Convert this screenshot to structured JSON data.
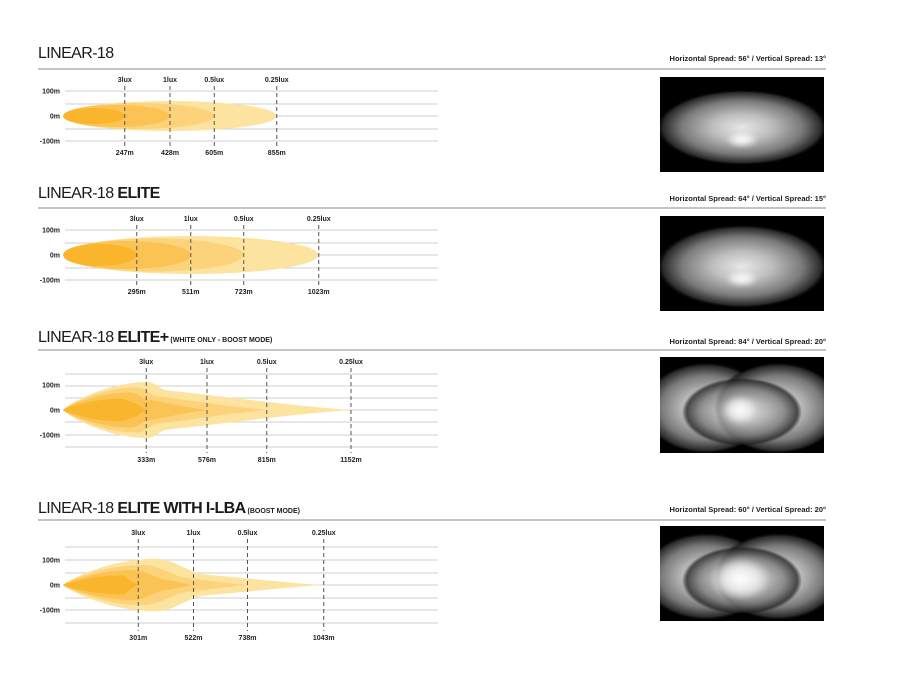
{
  "chart_data": [
    {
      "type": "area",
      "title": "LINEAR-18",
      "title_bold": "",
      "subtitle": "",
      "y_ticks": [
        "100m",
        "0m",
        "-100m"
      ],
      "lux_levels": [
        "3lux",
        "1lux",
        "0.5lux",
        "0.25lux"
      ],
      "distances": [
        "247m",
        "428m",
        "605m",
        "855m"
      ],
      "distance_values_m": [
        247,
        428,
        605,
        855
      ],
      "spread": "Horizontal Spread: 56° / Vertical Spread: 13°",
      "beam_shape": "ellipse"
    },
    {
      "type": "area",
      "title": "LINEAR-18 ",
      "title_bold": "ELITE",
      "subtitle": "",
      "y_ticks": [
        "100m",
        "0m",
        "-100m"
      ],
      "lux_levels": [
        "3lux",
        "1lux",
        "0.5lux",
        "0.25lux"
      ],
      "distances": [
        "295m",
        "511m",
        "723m",
        "1023m"
      ],
      "distance_values_m": [
        295,
        511,
        723,
        1023
      ],
      "spread": "Horizontal Spread: 64° / Vertical Spread: 15°",
      "beam_shape": "ellipse"
    },
    {
      "type": "area",
      "title": "LINEAR-18 ",
      "title_bold": "ELITE+",
      "subtitle": " (WHITE ONLY - BOOST MODE)",
      "y_ticks": [
        "100m",
        "0m",
        "-100m"
      ],
      "lux_levels": [
        "3lux",
        "1lux",
        "0.5lux",
        "0.25lux"
      ],
      "distances": [
        "333m",
        "576m",
        "815m",
        "1152m"
      ],
      "distance_values_m": [
        333,
        576,
        815,
        1152
      ],
      "spread": "Horizontal Spread: 84° / Vertical Spread: 20°",
      "beam_shape": "boost"
    },
    {
      "type": "area",
      "title": "LINEAR-18 ",
      "title_bold": "ELITE WITH I-LBA",
      "subtitle": " (BOOST MODE)",
      "y_ticks": [
        "100m",
        "0m",
        "-100m"
      ],
      "lux_levels": [
        "3lux",
        "1lux",
        "0.5lux",
        "0.25lux"
      ],
      "distances": [
        "301m",
        "522m",
        "738m",
        "1043m"
      ],
      "distance_values_m": [
        301,
        522,
        738,
        1043
      ],
      "spread": "Horizontal Spread: 60° / Vertical Spread: 20°",
      "beam_shape": "boost-ilba"
    }
  ],
  "colors": {
    "contours": [
      "#f9b52c",
      "#fbc354",
      "#fcd27a",
      "#fde3a0"
    ],
    "grid": "#cfcfcf",
    "rule": "#888888",
    "dash": "#555555"
  }
}
